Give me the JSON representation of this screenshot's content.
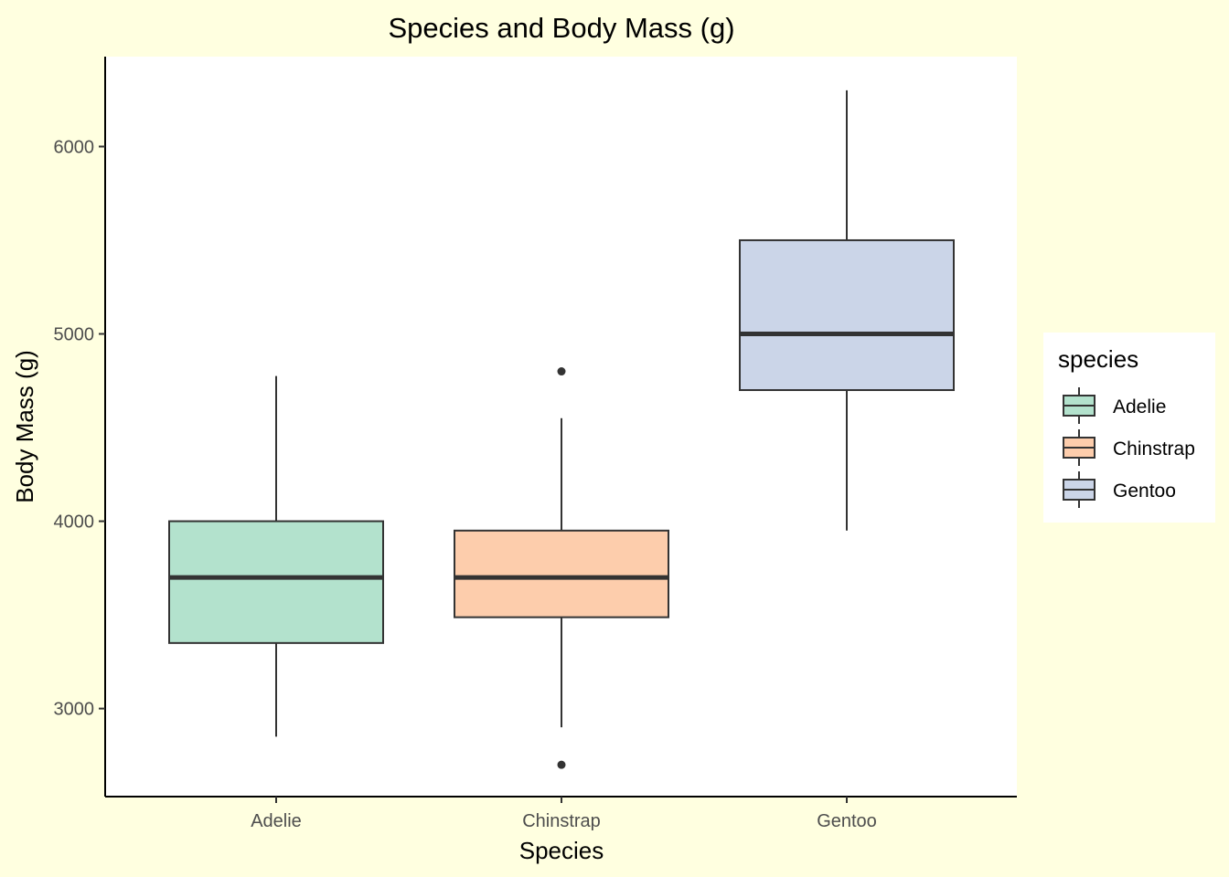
{
  "chart_data": {
    "type": "box",
    "title": "Species and Body Mass (g)",
    "xlabel": "Species",
    "ylabel": "Body Mass (g)",
    "categories": [
      "Adelie",
      "Chinstrap",
      "Gentoo"
    ],
    "ylim": [
      2530,
      6480
    ],
    "yticks": [
      3000,
      4000,
      5000,
      6000
    ],
    "grid": false,
    "legend": {
      "title": "species",
      "position": "right",
      "entries": [
        "Adelie",
        "Chinstrap",
        "Gentoo"
      ]
    },
    "boxes": [
      {
        "category": "Adelie",
        "whisker_low": 2850,
        "q1": 3350,
        "median": 3700,
        "q3": 4000,
        "whisker_high": 4775,
        "outliers": [],
        "color": "#b3e2cd"
      },
      {
        "category": "Chinstrap",
        "whisker_low": 2900,
        "q1": 3487.5,
        "median": 3700,
        "q3": 3950,
        "whisker_high": 4550,
        "outliers": [
          4800,
          2700
        ],
        "color": "#fdcdac"
      },
      {
        "category": "Gentoo",
        "whisker_low": 3950,
        "q1": 4700,
        "median": 5000,
        "q3": 5500,
        "whisker_high": 6300,
        "outliers": [],
        "color": "#cbd5e8"
      }
    ]
  },
  "colors": {
    "background": "#ffffe0",
    "panel": "#ffffff",
    "box_outline": "#333333",
    "axis_line": "#000000",
    "tick_text": "#4d4d4d"
  }
}
